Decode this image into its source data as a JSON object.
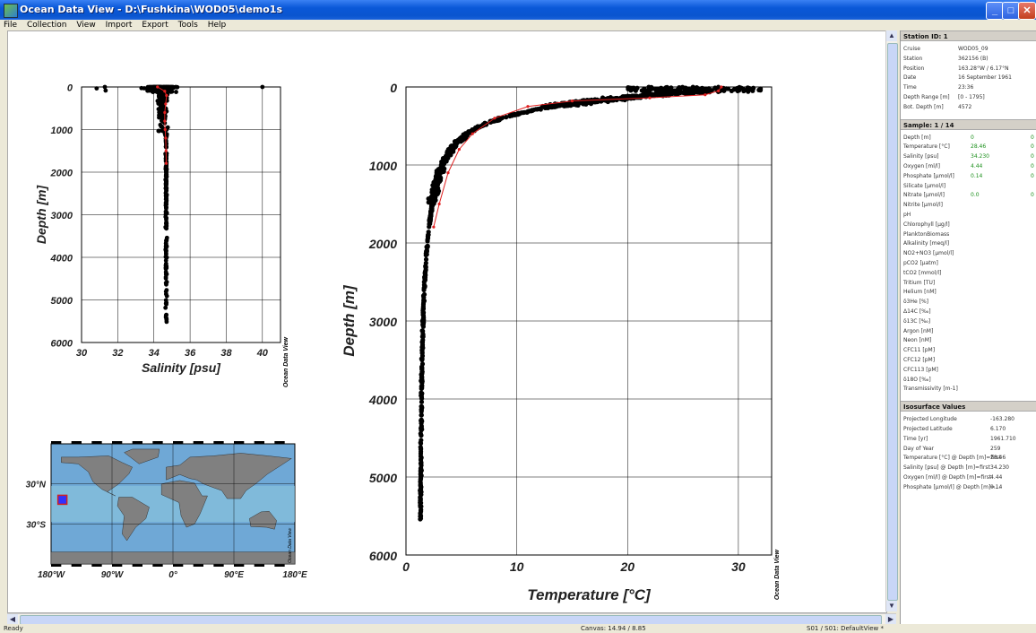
{
  "window": {
    "title": "Ocean Data View - D:\\Fushkina\\WOD05\\demo1s"
  },
  "menu": [
    "File",
    "Collection",
    "View",
    "Import",
    "Export",
    "Tools",
    "Help"
  ],
  "status": {
    "left": "Ready",
    "canvas": "Canvas:  14.94 / 8.85",
    "view": "S01 / S01: DefaultView *"
  },
  "station": {
    "header": "Station ID: 1",
    "fields": [
      {
        "k": "Cruise",
        "v": "WOD05_09"
      },
      {
        "k": "Station",
        "v": "362156 (B)"
      },
      {
        "k": "Position",
        "v": "163.28°W / 6.17°N"
      },
      {
        "k": "Date",
        "v": "16 September 1961"
      },
      {
        "k": "Time",
        "v": "23:36"
      },
      {
        "k": "Depth Range [m]",
        "v": "[0 - 1795]"
      },
      {
        "k": "Bot. Depth [m]",
        "v": "4572"
      }
    ]
  },
  "sample": {
    "header": "Sample: 1 / 14",
    "fields": [
      {
        "k": "Depth [m]",
        "v": "0",
        "f": "0"
      },
      {
        "k": "Temperature [°C]",
        "v": "28.46",
        "f": "0"
      },
      {
        "k": "Salinity [psu]",
        "v": "34.230",
        "f": "0"
      },
      {
        "k": "Oxygen [ml/l]",
        "v": "4.44",
        "f": "0"
      },
      {
        "k": "Phosphate [µmol/l]",
        "v": "0.14",
        "f": "0"
      },
      {
        "k": "Silicate [µmol/l]",
        "v": "",
        "f": ""
      },
      {
        "k": "Nitrate [µmol/l]",
        "v": "0.0",
        "f": "0"
      },
      {
        "k": "Nitrite [µmol/l]",
        "v": "",
        "f": ""
      },
      {
        "k": "pH",
        "v": "",
        "f": ""
      },
      {
        "k": "Chlorophyll [µg/l]",
        "v": "",
        "f": ""
      },
      {
        "k": "PlanktonBiomass",
        "v": "",
        "f": ""
      },
      {
        "k": "Alkalinity [meq/l]",
        "v": "",
        "f": ""
      },
      {
        "k": "NO2+NO3 [µmol/l]",
        "v": "",
        "f": ""
      },
      {
        "k": "pCO2 [µatm]",
        "v": "",
        "f": ""
      },
      {
        "k": "tCO2 [mmol/l]",
        "v": "",
        "f": ""
      },
      {
        "k": "Tritium [TU]",
        "v": "",
        "f": ""
      },
      {
        "k": "Helium [nM]",
        "v": "",
        "f": ""
      },
      {
        "k": "δ3He [%]",
        "v": "",
        "f": ""
      },
      {
        "k": "Δ14C [‰]",
        "v": "",
        "f": ""
      },
      {
        "k": "δ13C [‰]",
        "v": "",
        "f": ""
      },
      {
        "k": "Argon [nM]",
        "v": "",
        "f": ""
      },
      {
        "k": "Neon [nM]",
        "v": "",
        "f": ""
      },
      {
        "k": "CFC11 [pM]",
        "v": "",
        "f": ""
      },
      {
        "k": "CFC12 [pM]",
        "v": "",
        "f": ""
      },
      {
        "k": "CFC113 [pM]",
        "v": "",
        "f": ""
      },
      {
        "k": "δ18O [‰]",
        "v": "",
        "f": ""
      },
      {
        "k": "Transmissivity [m-1]",
        "v": "",
        "f": ""
      }
    ]
  },
  "isosurface": {
    "header": "Isosurface Values",
    "fields": [
      {
        "k": "Projected Longitude",
        "v": "-163.280"
      },
      {
        "k": "Projected Latitude",
        "v": "6.170"
      },
      {
        "k": "Time [yr]",
        "v": "1961.710"
      },
      {
        "k": "Day of Year",
        "v": "259"
      },
      {
        "k": "Temperature [°C] @ Depth [m]=first",
        "v": "28.46"
      },
      {
        "k": "Salinity [psu] @ Depth [m]=first",
        "v": "34.230"
      },
      {
        "k": "Oxygen [ml/l] @ Depth [m]=first",
        "v": "4.44"
      },
      {
        "k": "Phosphate [µmol/l] @ Depth [m]=...",
        "v": "0.14"
      }
    ]
  },
  "watermark": "Ocean Data View",
  "chart_data": [
    {
      "type": "scatter",
      "xlabel": "Salinity [psu]",
      "ylabel": "Depth [m]",
      "xlim": [
        30,
        41
      ],
      "ylim": [
        6000,
        0
      ],
      "xticks": [
        "30",
        "32",
        "34",
        "36",
        "38",
        "40"
      ],
      "yticks": [
        "0",
        "1000",
        "2000",
        "3000",
        "4000",
        "5000",
        "6000"
      ],
      "grid": true,
      "profile": {
        "x": [
          34.2,
          34.6,
          34.7,
          34.65,
          34.6,
          34.6,
          34.62,
          34.65,
          34.67,
          34.68
        ],
        "y": [
          0,
          100,
          200,
          400,
          600,
          800,
          1000,
          1200,
          1500,
          1795
        ]
      }
    },
    {
      "type": "scatter",
      "xlabel": "Temperature [°C]",
      "ylabel": "Depth [m]",
      "xlim": [
        0,
        33
      ],
      "ylim": [
        6000,
        0
      ],
      "xticks": [
        "0",
        "10",
        "20",
        "30"
      ],
      "yticks": [
        "0",
        "1000",
        "2000",
        "3000",
        "4000",
        "5000",
        "6000"
      ],
      "grid": true,
      "profile": {
        "x": [
          28.46,
          28.2,
          27.0,
          22.0,
          15.0,
          11.0,
          8.0,
          6.0,
          4.8,
          3.8,
          3.0,
          2.5
        ],
        "y": [
          0,
          50,
          100,
          140,
          180,
          250,
          400,
          600,
          800,
          1100,
          1500,
          1795
        ]
      }
    },
    {
      "type": "map",
      "xticks": [
        "180°W",
        "90°W",
        "0°",
        "90°E",
        "180°E"
      ],
      "yticks": [
        "30°N",
        "30°S"
      ],
      "station": {
        "lon": -163.28,
        "lat": 6.17
      }
    }
  ]
}
